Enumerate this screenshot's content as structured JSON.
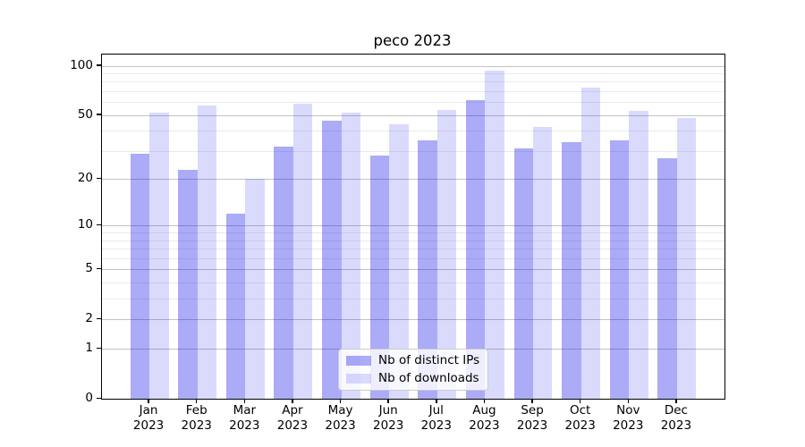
{
  "chart_data": {
    "type": "bar",
    "title": "peco 2023",
    "categories": [
      "Jan",
      "Feb",
      "Mar",
      "Apr",
      "May",
      "Jun",
      "Jul",
      "Aug",
      "Sep",
      "Oct",
      "Nov",
      "Dec"
    ],
    "category_year": "2023",
    "x_tick_labels": [
      "Jan 2023",
      "Feb 2023",
      "Mar 2023",
      "Apr 2023",
      "May 2023",
      "Jun 2023",
      "Jul 2023",
      "Aug 2023",
      "Sep 2023",
      "Oct 2023",
      "Nov 2023",
      "Dec 2023"
    ],
    "series": [
      {
        "name": "Nb of distinct IPs",
        "color": "rgba(10, 10, 235, 0.34)",
        "color_blended_hex": "#acacf8",
        "values": [
          29,
          23,
          12,
          32,
          46,
          28,
          35,
          62,
          31,
          34,
          35,
          27
        ]
      },
      {
        "name": "Nb of downloads",
        "color": "rgba(10, 10, 235, 0.15)",
        "color_blended_hex": "#dcdcfb",
        "values": [
          52,
          57,
          20,
          59,
          52,
          44,
          54,
          94,
          42,
          74,
          53,
          48
        ]
      }
    ],
    "xlabel": "",
    "ylabel": "",
    "y_axis": {
      "scale": "log1p",
      "ylim": [
        0,
        117
      ],
      "ticks_major": [
        0,
        1,
        2,
        5,
        10,
        20,
        50,
        100
      ],
      "ticks_minor": [
        3,
        4,
        6,
        7,
        8,
        9,
        30,
        40,
        60,
        70,
        80,
        90
      ]
    },
    "grid": true,
    "legend": {
      "position": "lower center",
      "entries": [
        "Nb of distinct IPs",
        "Nb of downloads"
      ]
    }
  }
}
